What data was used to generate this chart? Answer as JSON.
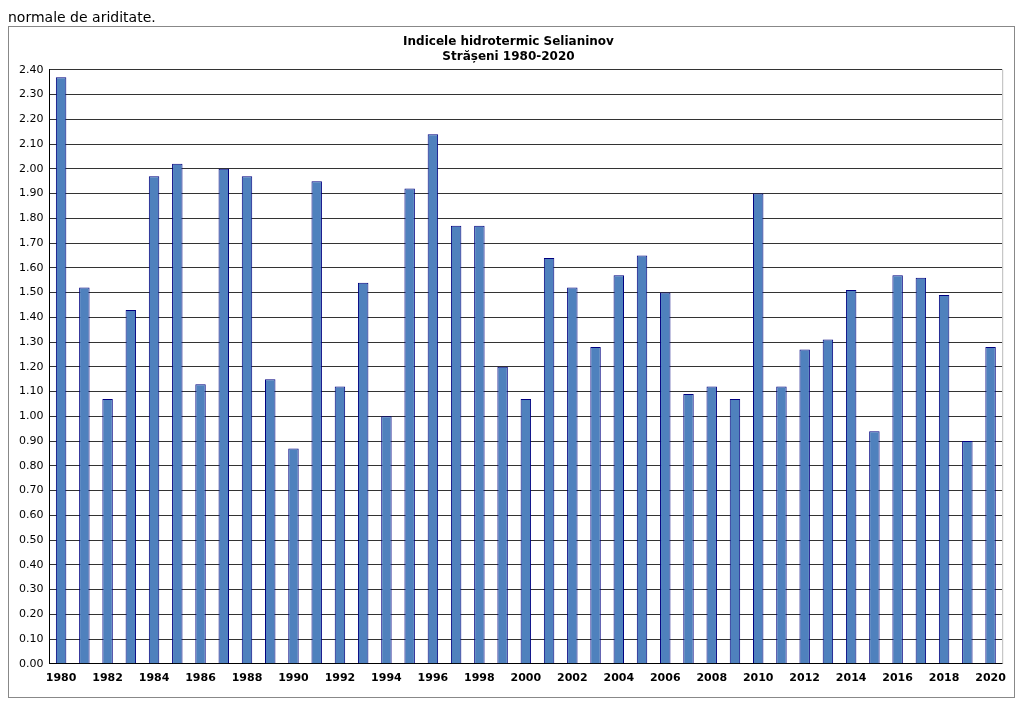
{
  "chart_data": {
    "type": "bar",
    "title": "Indicele hidrotermic Selianinov",
    "subtitle": "Strășeni 1980-2020",
    "annotations": [
      "normale de ariditate."
    ],
    "categories": [
      "1980",
      null,
      "1982",
      null,
      "1984",
      null,
      "1986",
      null,
      "1988",
      null,
      "1990",
      null,
      "1992",
      null,
      "1994",
      null,
      "1996",
      null,
      "1998",
      null,
      "2000",
      null,
      "2002",
      null,
      "2004",
      null,
      "2006",
      null,
      "2008",
      null,
      "2010",
      null,
      "2012",
      null,
      "2014",
      null,
      "2016",
      null,
      "2018",
      null,
      "2020"
    ],
    "values": [
      2.37,
      1.52,
      1.07,
      1.43,
      1.97,
      2.02,
      1.13,
      2.0,
      1.97,
      1.15,
      0.87,
      1.95,
      1.12,
      1.54,
      1.0,
      1.92,
      2.14,
      1.77,
      1.77,
      1.2,
      1.07,
      1.64,
      1.52,
      1.28,
      1.57,
      1.65,
      1.5,
      1.09,
      1.12,
      1.07,
      1.9,
      1.12,
      1.27,
      1.31,
      1.51,
      0.94,
      1.57,
      1.56,
      1.49,
      0.9,
      1.28
    ],
    "color": "#4f81bd",
    "ylim": [
      0,
      2.4
    ],
    "yticks": [
      {
        "value": 0,
        "label": "0.00"
      },
      {
        "value": 0.1,
        "label": "0.10"
      },
      {
        "value": 0.2,
        "label": "0.20"
      },
      {
        "value": 0.3,
        "label": "0.30"
      },
      {
        "value": 0.4,
        "label": "0.40"
      },
      {
        "value": 0.5,
        "label": "0.50"
      },
      {
        "value": 0.6,
        "label": "0.60"
      },
      {
        "value": 0.7,
        "label": "0.70"
      },
      {
        "value": 0.8,
        "label": "0.80"
      },
      {
        "value": 0.9,
        "label": "0.90"
      },
      {
        "value": 1,
        "label": "1.00"
      },
      {
        "value": 1.1,
        "label": "1.10"
      },
      {
        "value": 1.2,
        "label": "1.20"
      },
      {
        "value": 1.3,
        "label": "1.30"
      },
      {
        "value": 1.4,
        "label": "1.40"
      },
      {
        "value": 1.5,
        "label": "1.50"
      },
      {
        "value": 1.6,
        "label": "1.60"
      },
      {
        "value": 1.7,
        "label": "1.70"
      },
      {
        "value": 1.8,
        "label": "1.80"
      },
      {
        "value": 1.9,
        "label": "1.90"
      },
      {
        "value": 2,
        "label": "2.00"
      },
      {
        "value": 2.1,
        "label": "2.10"
      },
      {
        "value": 2.2,
        "label": "2.20"
      },
      {
        "value": 2.3,
        "label": "2.30"
      },
      {
        "value": 2.4,
        "label": "2.40"
      }
    ],
    "grid": "y",
    "legend": false
  }
}
